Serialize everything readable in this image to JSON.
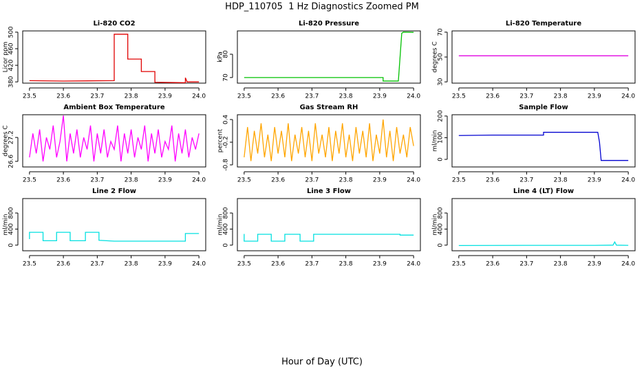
{
  "title": "HDP_110705  1 Hz Diagnostics Zoomed PM",
  "xlabel": "Hour of Day (UTC)",
  "chart_data": [
    {
      "type": "line",
      "title": "Li-820 CO2",
      "ylabel": "Licor ppm",
      "color": "#e00000",
      "xlim": [
        23.48,
        24.02
      ],
      "xticks": [
        23.5,
        23.6,
        23.7,
        23.8,
        23.9,
        {
          "value": 24,
          "label": "24.0"
        }
      ],
      "ylim": [
        377,
        503
      ],
      "yticks": [
        380,
        420,
        460,
        500
      ],
      "x": [
        23.5,
        23.6,
        23.75,
        23.75,
        23.79,
        23.79,
        23.83,
        23.83,
        23.87,
        23.87,
        23.96,
        23.96,
        23.965,
        24.0
      ],
      "values": [
        383,
        382,
        383,
        495,
        495,
        435,
        435,
        405,
        405,
        379,
        378,
        390,
        380,
        380
      ]
    },
    {
      "type": "line",
      "title": "Li-820 Pressure",
      "ylabel": "kPa",
      "color": "#00c000",
      "xlim": [
        23.48,
        24.02
      ],
      "xticks": [
        23.5,
        23.6,
        23.7,
        23.8,
        23.9,
        {
          "value": 24,
          "label": "24.0"
        }
      ],
      "ylim": [
        67.6,
        90
      ],
      "yticks": [
        70,
        80
      ],
      "x": [
        23.5,
        23.91,
        23.91,
        23.955,
        23.965,
        23.97,
        24.0
      ],
      "values": [
        70,
        70,
        68.5,
        68.5,
        89,
        89.5,
        89.4
      ]
    },
    {
      "type": "line",
      "title": "Li-820 Temperature",
      "ylabel": "degrees C",
      "color": "#e000e0",
      "xlim": [
        23.48,
        24.02
      ],
      "xticks": [
        23.5,
        23.6,
        23.7,
        23.8,
        23.9,
        {
          "value": 24,
          "label": "24.0"
        }
      ],
      "ylim": [
        29,
        71
      ],
      "yticks": [
        30,
        50,
        70
      ],
      "x": [
        23.5,
        24.0
      ],
      "values": [
        51,
        51
      ]
    },
    {
      "type": "line",
      "title": "Ambient Box Temperature",
      "ylabel": "degrees C",
      "color": "#ff00ff",
      "xlim": [
        23.48,
        24.02
      ],
      "xticks": [
        23.5,
        23.6,
        23.7,
        23.8,
        23.9,
        {
          "value": 24,
          "label": "24.0"
        }
      ],
      "ylim": [
        26.46,
        27.77
      ],
      "yticks": [
        26.6,
        27.2
      ],
      "x": [
        23.5,
        23.51,
        23.52,
        23.53,
        23.54,
        23.55,
        23.56,
        23.57,
        23.58,
        23.59,
        23.6,
        23.61,
        23.62,
        23.63,
        23.64,
        23.65,
        23.66,
        23.67,
        23.68,
        23.69,
        23.7,
        23.71,
        23.72,
        23.73,
        23.74,
        23.75,
        23.76,
        23.77,
        23.78,
        23.79,
        23.8,
        23.81,
        23.82,
        23.83,
        23.84,
        23.85,
        23.86,
        23.87,
        23.88,
        23.89,
        23.9,
        23.91,
        23.92,
        23.93,
        23.94,
        23.95,
        23.96,
        23.97,
        23.98,
        23.99,
        24.0
      ],
      "values": [
        26.7,
        27.3,
        26.8,
        27.4,
        26.6,
        27.2,
        26.9,
        27.5,
        26.7,
        27.1,
        27.75,
        26.6,
        27.3,
        26.8,
        27.4,
        26.7,
        27.2,
        26.9,
        27.5,
        26.6,
        27.3,
        26.8,
        27.4,
        26.7,
        27.1,
        26.9,
        27.5,
        26.6,
        27.3,
        26.8,
        27.4,
        26.7,
        27.2,
        26.9,
        27.5,
        26.6,
        27.3,
        26.8,
        27.4,
        26.7,
        27.1,
        26.9,
        27.5,
        26.6,
        27.3,
        26.8,
        27.4,
        26.7,
        27.2,
        26.9,
        27.3
      ]
    },
    {
      "type": "line",
      "title": "Gas Stream RH",
      "ylabel": "percent",
      "color": "#ffa500",
      "xlim": [
        23.48,
        24.02
      ],
      "xticks": [
        23.5,
        23.6,
        23.7,
        23.8,
        23.9,
        {
          "value": 24,
          "label": "24.0"
        }
      ],
      "ylim": [
        -0.855,
        0.527
      ],
      "yticks": [
        -0.8,
        -0.2,
        0.4
      ],
      "x": [
        23.5,
        23.51,
        23.52,
        23.53,
        23.54,
        23.55,
        23.56,
        23.57,
        23.58,
        23.59,
        23.6,
        23.61,
        23.62,
        23.63,
        23.64,
        23.65,
        23.66,
        23.67,
        23.68,
        23.69,
        23.7,
        23.71,
        23.72,
        23.73,
        23.74,
        23.75,
        23.76,
        23.77,
        23.78,
        23.79,
        23.8,
        23.81,
        23.82,
        23.83,
        23.84,
        23.85,
        23.86,
        23.87,
        23.88,
        23.89,
        23.9,
        23.91,
        23.92,
        23.93,
        23.94,
        23.95,
        23.96,
        23.97,
        23.98,
        23.99,
        24.0
      ],
      "values": [
        -0.6,
        0.2,
        -0.7,
        0.1,
        -0.5,
        0.3,
        -0.6,
        0.0,
        -0.7,
        0.2,
        -0.5,
        0.1,
        -0.6,
        0.3,
        -0.7,
        0.0,
        -0.5,
        0.2,
        -0.6,
        0.1,
        -0.7,
        0.3,
        -0.5,
        0.0,
        -0.6,
        0.2,
        -0.7,
        0.1,
        -0.5,
        0.3,
        -0.6,
        0.0,
        -0.7,
        0.2,
        -0.5,
        0.1,
        -0.6,
        0.3,
        -0.7,
        0.0,
        -0.5,
        0.4,
        -0.6,
        0.1,
        -0.7,
        0.2,
        -0.5,
        0.0,
        -0.6,
        0.2,
        -0.3
      ]
    },
    {
      "type": "line",
      "title": "Sample Flow",
      "ylabel": "ml/min",
      "color": "#0000d0",
      "xlim": [
        23.48,
        24.02
      ],
      "xticks": [
        23.5,
        23.6,
        23.7,
        23.8,
        23.9,
        {
          "value": 24,
          "label": "24.0"
        }
      ],
      "ylim": [
        -35,
        206
      ],
      "yticks": [
        0,
        100,
        200
      ],
      "x": [
        23.5,
        23.6,
        23.75,
        23.75,
        23.91,
        23.915,
        23.92,
        24.0
      ],
      "values": [
        110,
        112,
        112,
        125,
        125,
        80,
        -5,
        -5
      ]
    },
    {
      "type": "line",
      "title": "Line 2 Flow",
      "ylabel": "ml/min",
      "color": "#00e0e0",
      "xlim": [
        23.48,
        24.02
      ],
      "xticks": [
        23.5,
        23.6,
        23.7,
        23.8,
        23.9,
        {
          "value": 24,
          "label": "24.0"
        }
      ],
      "ylim": [
        -140,
        1160
      ],
      "yticks": [
        0,
        400,
        800
      ],
      "x": [
        23.5,
        23.5,
        23.54,
        23.54,
        23.58,
        23.58,
        23.62,
        23.62,
        23.665,
        23.665,
        23.705,
        23.705,
        23.75,
        23.96,
        23.96,
        24.0
      ],
      "values": [
        150,
        320,
        320,
        110,
        110,
        320,
        320,
        110,
        110,
        320,
        320,
        120,
        100,
        100,
        290,
        290
      ]
    },
    {
      "type": "line",
      "title": "Line 3 Flow",
      "ylabel": "ml/min",
      "color": "#00e0e0",
      "xlim": [
        23.48,
        24.02
      ],
      "xticks": [
        23.5,
        23.6,
        23.7,
        23.8,
        23.9,
        {
          "value": 24,
          "label": "24.0"
        }
      ],
      "ylim": [
        -140,
        1160
      ],
      "yticks": [
        0,
        400,
        800
      ],
      "x": [
        23.5,
        23.5,
        23.54,
        23.54,
        23.58,
        23.58,
        23.62,
        23.62,
        23.665,
        23.665,
        23.705,
        23.705,
        23.96,
        23.96,
        24.0
      ],
      "values": [
        280,
        100,
        100,
        270,
        270,
        100,
        100,
        270,
        270,
        100,
        100,
        270,
        270,
        250,
        250
      ]
    },
    {
      "type": "line",
      "title": "Line 4 (LT) Flow",
      "ylabel": "ml/min",
      "color": "#00e0e0",
      "xlim": [
        23.48,
        24.02
      ],
      "xticks": [
        23.5,
        23.6,
        23.7,
        23.8,
        23.9,
        {
          "value": 24,
          "label": "24.0"
        }
      ],
      "ylim": [
        -140,
        1160
      ],
      "yticks": [
        0,
        400,
        800
      ],
      "x": [
        23.5,
        23.7,
        23.9,
        23.955,
        23.96,
        23.965,
        24.0
      ],
      "values": [
        -10,
        -5,
        -5,
        0,
        80,
        0,
        -5
      ]
    }
  ]
}
